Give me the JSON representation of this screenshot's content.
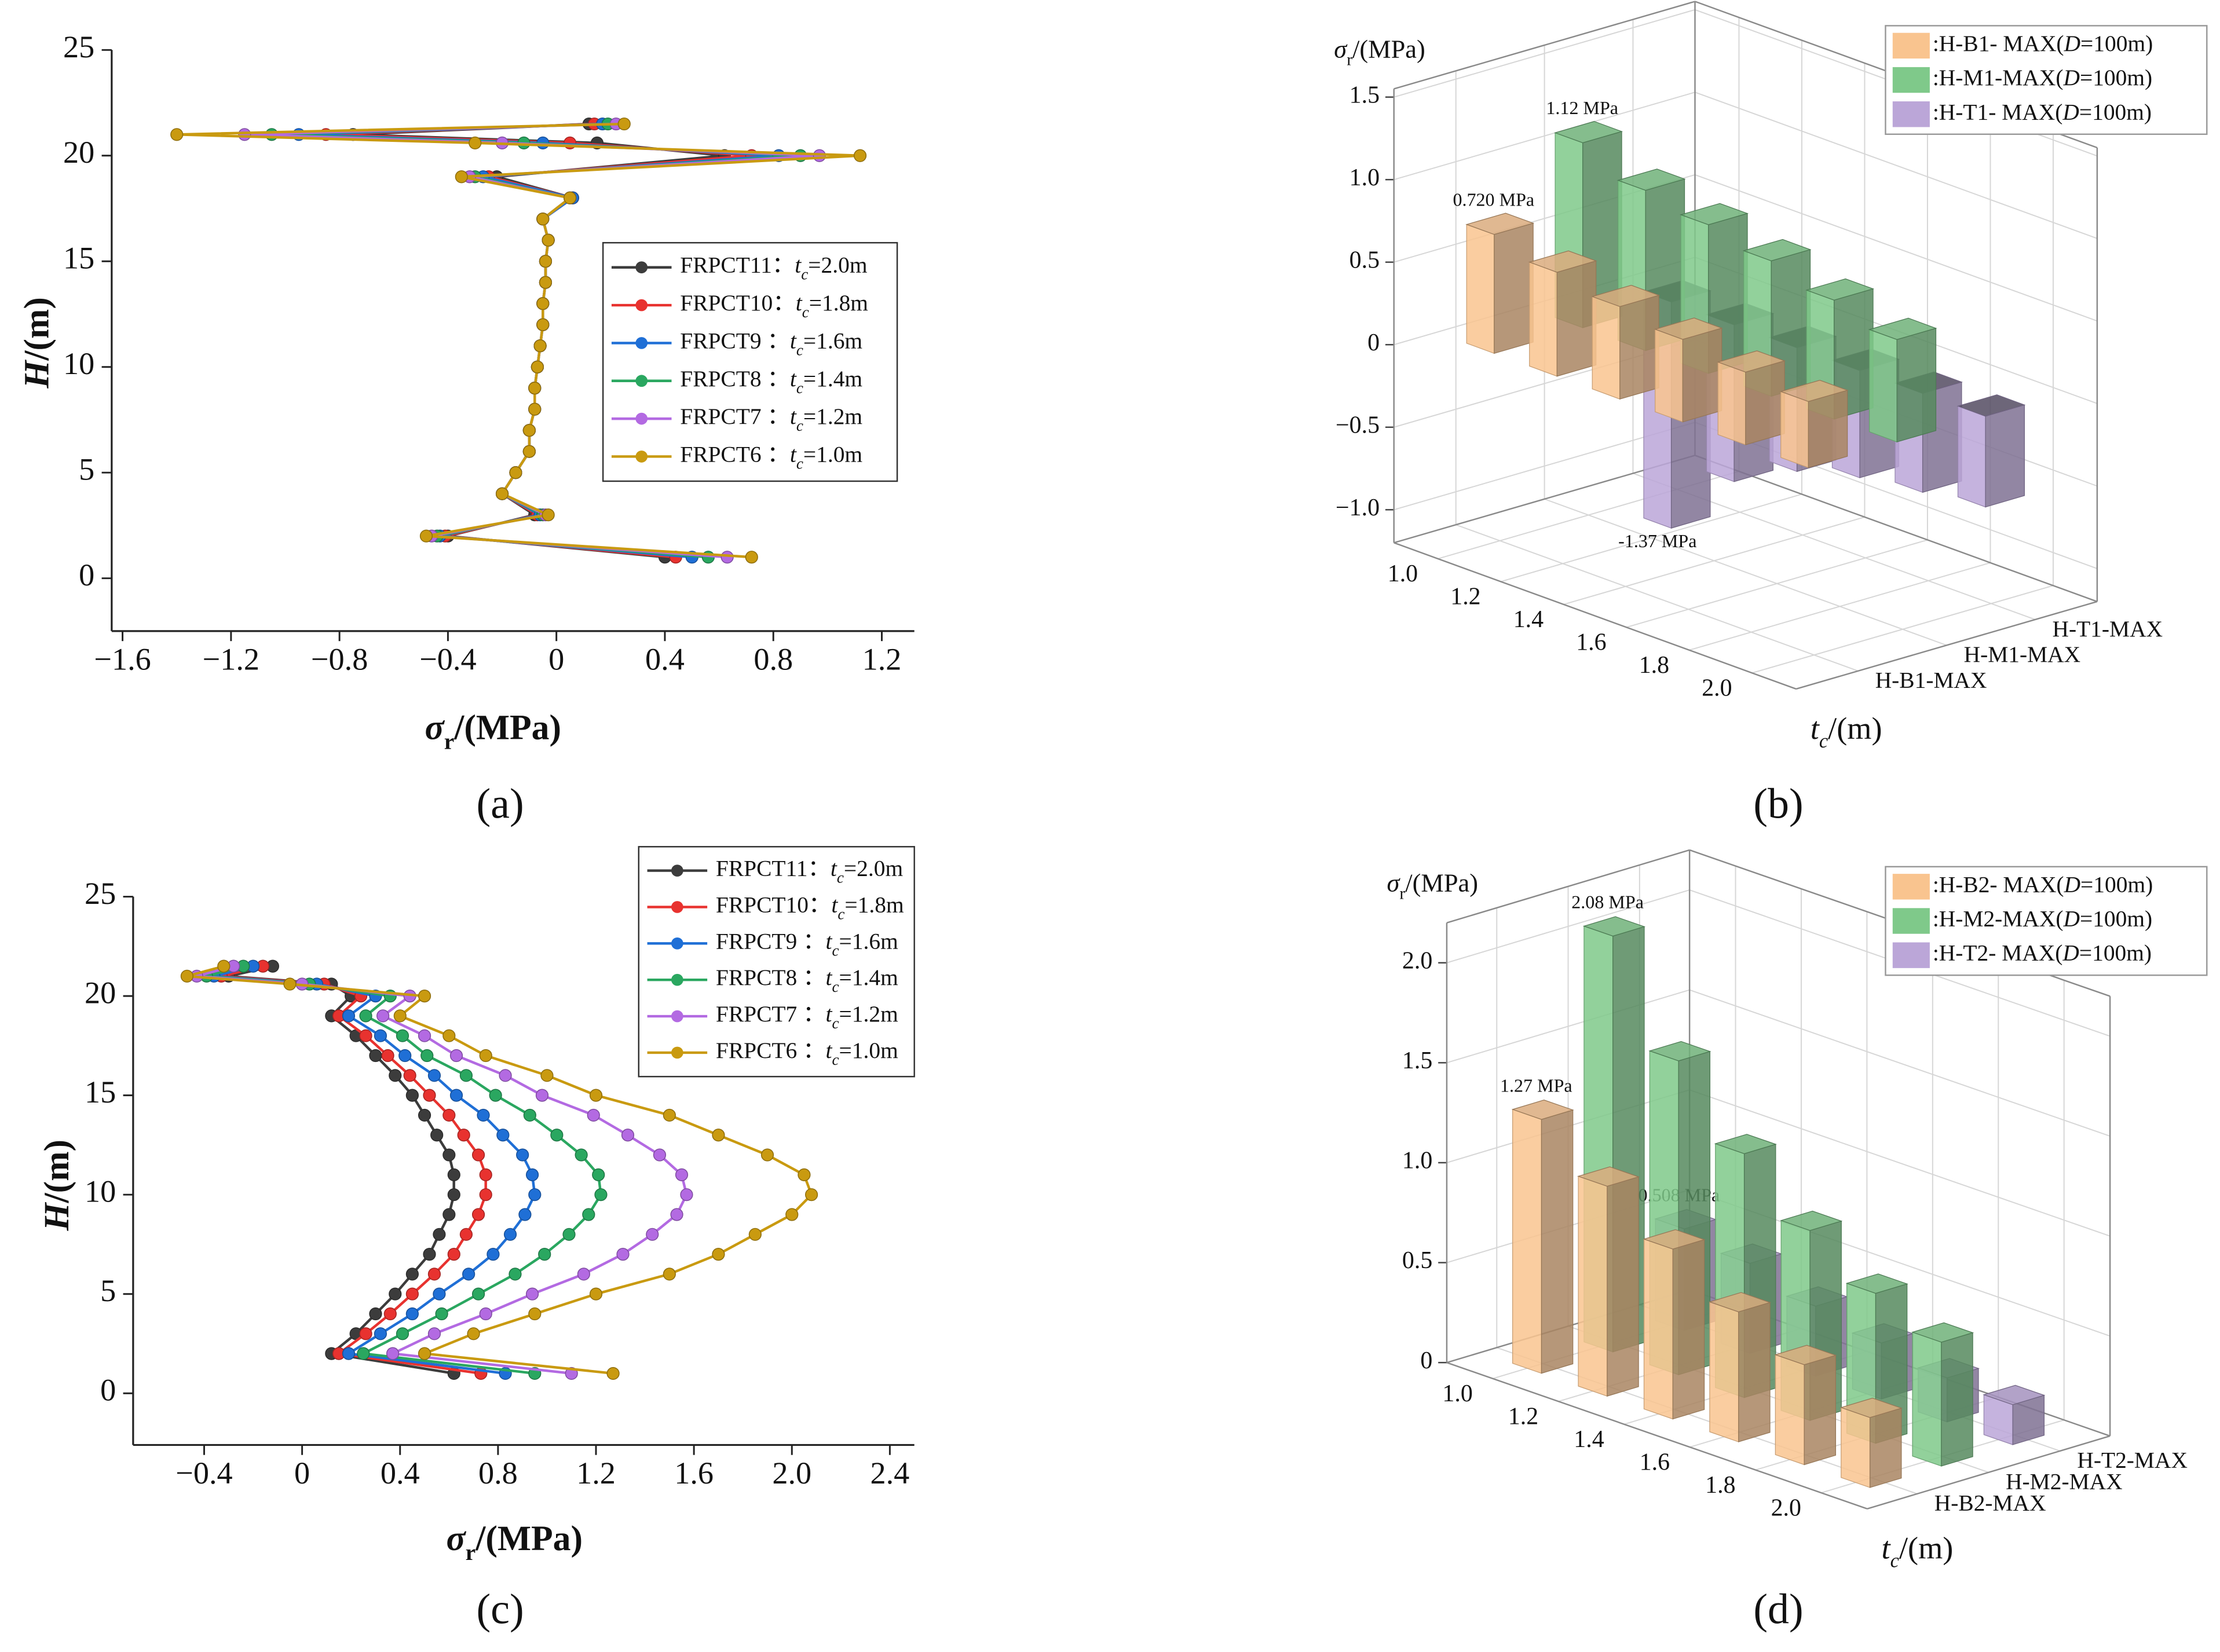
{
  "chart_data": [
    {
      "type": "line",
      "caption": "(a)",
      "xlabel": {
        "symbol": "σ",
        "sub": "r",
        "unit": "/(MPa)"
      },
      "ylabel": {
        "symbol": "H",
        "unit": "/(m)"
      },
      "xlim": [
        -1.64,
        1.32
      ],
      "xticks": [
        {
          "value": -1.6,
          "label": "−1.6"
        },
        {
          "value": -1.2,
          "label": "−1.2"
        },
        {
          "value": -0.8,
          "label": "−0.8"
        },
        {
          "value": -0.4,
          "label": "−0.4"
        },
        0,
        0.4,
        0.8,
        1.2
      ],
      "ylim": [
        -2.5,
        25
      ],
      "yticks": [
        0,
        5,
        10,
        15,
        20,
        25
      ],
      "legend_symbol": "t",
      "legend_symbol_sub": "c",
      "y": [
        1,
        2,
        3,
        4,
        5,
        6,
        7,
        8,
        9,
        10,
        11,
        12,
        13,
        14,
        15,
        16,
        17,
        18,
        19,
        20,
        20.6,
        21,
        21.5
      ],
      "series": [
        {
          "name": "FRPCT11",
          "sep": "：",
          "param": "=2.0m",
          "color": "#3c3c3c",
          "values": [
            0.4,
            -0.4,
            -0.08,
            -0.2,
            -0.15,
            -0.1,
            -0.1,
            -0.08,
            -0.08,
            -0.07,
            -0.06,
            -0.05,
            -0.05,
            -0.04,
            -0.04,
            -0.03,
            -0.05,
            0.06,
            -0.22,
            0.62,
            0.15,
            -0.75,
            0.12
          ]
        },
        {
          "name": "FRPCT10",
          "sep": "：",
          "param": "=1.8m",
          "color": "#e8322f",
          "values": [
            0.44,
            -0.41,
            -0.07,
            -0.2,
            -0.15,
            -0.1,
            -0.1,
            -0.08,
            -0.08,
            -0.07,
            -0.06,
            -0.05,
            -0.05,
            -0.04,
            -0.04,
            -0.03,
            -0.05,
            0.06,
            -0.25,
            0.72,
            0.05,
            -0.85,
            0.14
          ]
        },
        {
          "name": "FRPCT9",
          "sep": " ：",
          "param": "=1.6m",
          "color": "#1f6fd6",
          "values": [
            0.5,
            -0.43,
            -0.06,
            -0.2,
            -0.15,
            -0.1,
            -0.1,
            -0.08,
            -0.08,
            -0.07,
            -0.06,
            -0.05,
            -0.05,
            -0.04,
            -0.04,
            -0.03,
            -0.05,
            0.06,
            -0.27,
            0.82,
            -0.05,
            -0.95,
            0.17
          ]
        },
        {
          "name": "FRPCT8",
          "sep": " ：",
          "param": "=1.4m",
          "color": "#2aa760",
          "values": [
            0.56,
            -0.44,
            -0.05,
            -0.2,
            -0.15,
            -0.1,
            -0.1,
            -0.08,
            -0.08,
            -0.07,
            -0.06,
            -0.05,
            -0.05,
            -0.04,
            -0.04,
            -0.03,
            -0.05,
            0.05,
            -0.3,
            0.9,
            -0.12,
            -1.05,
            0.19
          ]
        },
        {
          "name": "FRPCT7",
          "sep": " ：",
          "param": "=1.2m",
          "color": "#b36ae2",
          "values": [
            0.63,
            -0.46,
            -0.04,
            -0.2,
            -0.15,
            -0.1,
            -0.1,
            -0.08,
            -0.08,
            -0.07,
            -0.06,
            -0.05,
            -0.05,
            -0.04,
            -0.04,
            -0.03,
            -0.05,
            0.05,
            -0.32,
            0.97,
            -0.2,
            -1.15,
            0.22
          ]
        },
        {
          "name": "FRPCT6",
          "sep": " ：",
          "param": "=1.0m",
          "color": "#c99a10",
          "values": [
            0.72,
            -0.48,
            -0.03,
            -0.2,
            -0.15,
            -0.1,
            -0.1,
            -0.08,
            -0.08,
            -0.07,
            -0.06,
            -0.05,
            -0.05,
            -0.04,
            -0.04,
            -0.03,
            -0.05,
            0.05,
            -0.35,
            1.12,
            -0.3,
            -1.4,
            0.25
          ]
        }
      ]
    },
    {
      "type": "bar3d",
      "caption": "(b)",
      "zlabel": {
        "symbol": "σ",
        "sub": "r",
        "unit": "/(MPa)"
      },
      "xlabel": {
        "symbol": "t",
        "sub": "c",
        "unit": "/(m)"
      },
      "categories": [
        "1.0",
        "1.2",
        "1.4",
        "1.6",
        "1.8",
        "2.0"
      ],
      "zlim": [
        -1.2,
        1.55
      ],
      "zticks": [
        {
          "value": -1,
          "label": "−1.0"
        },
        {
          "value": -0.5,
          "label": "−0.5"
        },
        0,
        0.5,
        {
          "value": 1,
          "label": "1.0"
        },
        1.5
      ],
      "series": [
        {
          "name": "H-B1-MAX",
          "legend": {
            "pre": ":H-B1- MAX(",
            "it": "D",
            "post": "=100m)"
          },
          "color": "#f9c48f",
          "values": [
            0.72,
            0.63,
            0.56,
            0.5,
            0.44,
            0.4
          ],
          "value_labels": [
            "0.720 MPa",
            null,
            null,
            null,
            null,
            null
          ]
        },
        {
          "name": "H-M1-MAX",
          "legend": {
            "pre": ":H-M1-MAX(",
            "it": "D",
            "post": "=100m)"
          },
          "color": "#7fc98a",
          "values": [
            1.12,
            0.97,
            0.9,
            0.82,
            0.72,
            0.62
          ],
          "value_labels": [
            "1.12 MPa",
            null,
            null,
            null,
            null,
            null
          ]
        },
        {
          "name": "H-T1-MAX",
          "legend": {
            "pre": ":H-T1- MAX(",
            "it": "D",
            "post": "=100m)"
          },
          "color": "#bba6d8",
          "values": [
            -1.37,
            -0.95,
            -0.75,
            -0.65,
            -0.6,
            -0.55
          ],
          "value_labels": [
            "-1.37 MPa",
            null,
            null,
            null,
            null,
            null
          ]
        }
      ]
    },
    {
      "type": "line",
      "caption": "(c)",
      "xlabel": {
        "symbol": "σ",
        "sub": "r",
        "unit": "/(MPa)"
      },
      "ylabel": {
        "symbol": "H",
        "unit": "/(m)"
      },
      "xlim": [
        -0.69,
        2.5
      ],
      "xticks": [
        {
          "value": -0.4,
          "label": "−0.4"
        },
        0,
        0.4,
        0.8,
        1.2,
        1.6,
        {
          "value": 2,
          "label": "2.0"
        },
        2.4
      ],
      "ylim": [
        -2.6,
        25
      ],
      "yticks": [
        0,
        5,
        10,
        15,
        20,
        25
      ],
      "legend_symbol": "t",
      "legend_symbol_sub": "c",
      "y": [
        1,
        2,
        3,
        4,
        5,
        6,
        7,
        8,
        9,
        10,
        11,
        12,
        13,
        14,
        15,
        16,
        17,
        18,
        19,
        20,
        20.6,
        21,
        21.5
      ],
      "series": [
        {
          "name": "FRPCT11",
          "sep": "：",
          "param": "=2.0m",
          "color": "#3c3c3c",
          "values": [
            0.62,
            0.12,
            0.22,
            0.3,
            0.38,
            0.45,
            0.52,
            0.56,
            0.6,
            0.62,
            0.62,
            0.6,
            0.55,
            0.5,
            0.45,
            0.38,
            0.3,
            0.22,
            0.12,
            0.2,
            0.12,
            -0.3,
            -0.12
          ]
        },
        {
          "name": "FRPCT10",
          "sep": "：",
          "param": "=1.8m",
          "color": "#e8322f",
          "values": [
            0.73,
            0.15,
            0.26,
            0.36,
            0.45,
            0.54,
            0.62,
            0.67,
            0.72,
            0.75,
            0.75,
            0.72,
            0.66,
            0.6,
            0.52,
            0.44,
            0.35,
            0.26,
            0.15,
            0.24,
            0.09,
            -0.33,
            -0.16
          ]
        },
        {
          "name": "FRPCT9",
          "sep": " ：",
          "param": "=1.6m",
          "color": "#1f6fd6",
          "values": [
            0.83,
            0.19,
            0.32,
            0.45,
            0.56,
            0.68,
            0.78,
            0.85,
            0.91,
            0.95,
            0.94,
            0.9,
            0.82,
            0.74,
            0.63,
            0.54,
            0.42,
            0.32,
            0.19,
            0.3,
            0.06,
            -0.36,
            -0.2
          ]
        },
        {
          "name": "FRPCT8",
          "sep": " ：",
          "param": "=1.4m",
          "color": "#2aa760",
          "values": [
            0.95,
            0.25,
            0.41,
            0.57,
            0.72,
            0.87,
            0.99,
            1.09,
            1.17,
            1.22,
            1.21,
            1.14,
            1.04,
            0.93,
            0.79,
            0.67,
            0.51,
            0.41,
            0.26,
            0.36,
            0.03,
            -0.39,
            -0.24
          ]
        },
        {
          "name": "FRPCT7",
          "sep": " ：",
          "param": "=1.2m",
          "color": "#b36ae2",
          "values": [
            1.1,
            0.37,
            0.54,
            0.75,
            0.94,
            1.15,
            1.31,
            1.43,
            1.53,
            1.57,
            1.55,
            1.46,
            1.33,
            1.19,
            0.98,
            0.83,
            0.63,
            0.5,
            0.33,
            0.44,
            0.0,
            -0.43,
            -0.28
          ]
        },
        {
          "name": "FRPCT6",
          "sep": " ：",
          "param": "=1.0m",
          "color": "#c99a10",
          "values": [
            1.27,
            0.5,
            0.7,
            0.95,
            1.2,
            1.5,
            1.7,
            1.85,
            2.0,
            2.08,
            2.05,
            1.9,
            1.7,
            1.5,
            1.2,
            1.0,
            0.75,
            0.6,
            0.4,
            0.5,
            -0.05,
            -0.47,
            -0.32
          ]
        }
      ]
    },
    {
      "type": "bar3d",
      "caption": "(d)",
      "zlabel": {
        "symbol": "σ",
        "sub": "r",
        "unit": "/(MPa)"
      },
      "xlabel": {
        "symbol": "t",
        "sub": "c",
        "unit": "/(m)"
      },
      "categories": [
        "1.0",
        "1.2",
        "1.4",
        "1.6",
        "1.8",
        "2.0"
      ],
      "zlim": [
        0,
        2.2
      ],
      "zticks": [
        0,
        0.5,
        {
          "value": 1,
          "label": "1.0"
        },
        1.5,
        {
          "value": 2,
          "label": "2.0"
        }
      ],
      "series": [
        {
          "name": "H-B2-MAX",
          "legend": {
            "pre": ":H-B2- MAX(",
            "it": "D",
            "post": "=100m)"
          },
          "color": "#f9c48f",
          "values": [
            1.27,
            1.05,
            0.85,
            0.65,
            0.5,
            0.35
          ],
          "value_labels": [
            "1.27 MPa",
            null,
            null,
            null,
            null,
            null
          ]
        },
        {
          "name": "H-M2-MAX",
          "legend": {
            "pre": ":H-M2-MAX(",
            "it": "D",
            "post": "=100m)"
          },
          "color": "#7fc98a",
          "values": [
            2.08,
            1.57,
            1.22,
            0.95,
            0.75,
            0.62
          ],
          "value_labels": [
            "2.08 MPa",
            null,
            null,
            null,
            null,
            null
          ]
        },
        {
          "name": "H-T2-MAX",
          "legend": {
            "pre": ":H-T2- MAX(",
            "it": "D",
            "post": "=100m)"
          },
          "color": "#bba6d8",
          "values": [
            0.508,
            0.45,
            0.35,
            0.28,
            0.22,
            0.2
          ],
          "value_labels": [
            "0.508 MPa",
            null,
            null,
            null,
            null,
            null
          ]
        }
      ]
    }
  ]
}
